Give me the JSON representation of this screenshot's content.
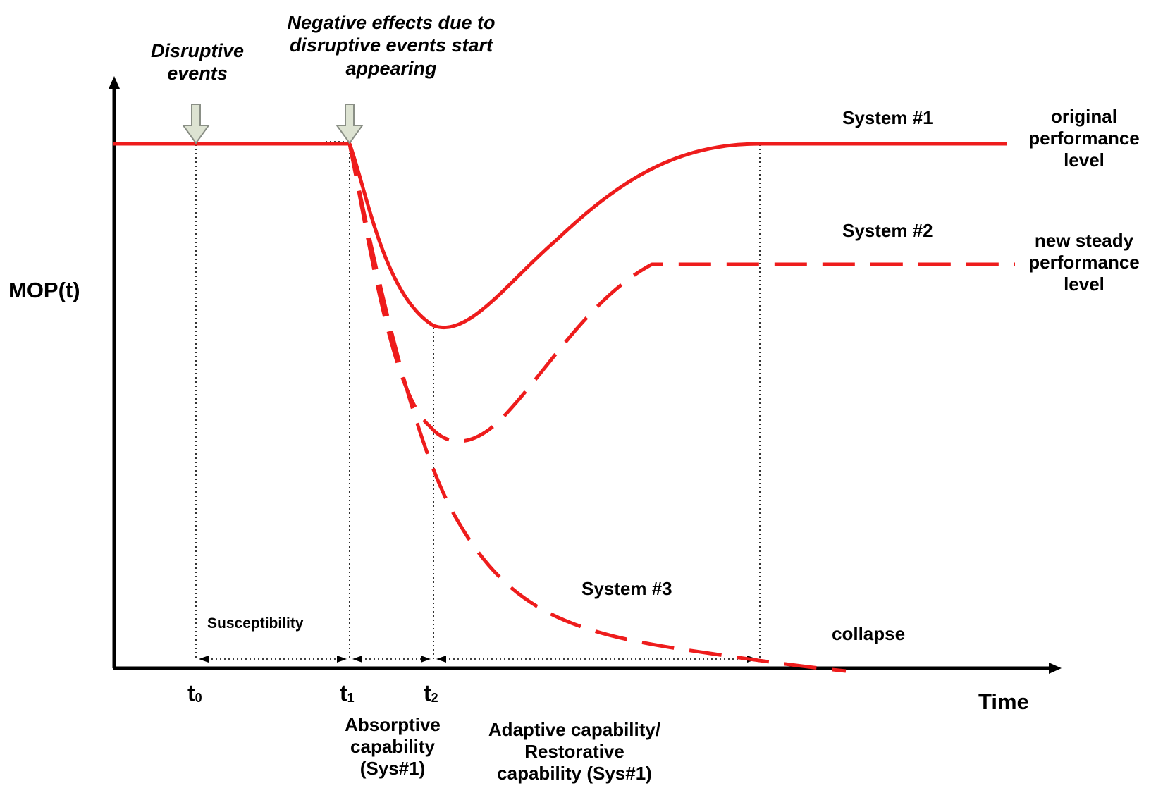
{
  "axes": {
    "y_label": "MOP(t)",
    "x_label": "Time"
  },
  "ticks": {
    "t0": {
      "base": "t",
      "sub": "0"
    },
    "t1": {
      "base": "t",
      "sub": "1"
    },
    "t2": {
      "base": "t",
      "sub": "2"
    }
  },
  "annotations": {
    "disruptive_events": [
      "Disruptive",
      "events"
    ],
    "negative_effects": [
      "Negative effects due to",
      "disruptive events start",
      "appearing"
    ],
    "system1": "System #1",
    "system2": "System #2",
    "system3": "System #3",
    "original_level": [
      "original",
      "performance",
      "level"
    ],
    "new_level": [
      "new steady",
      "performance",
      "level"
    ],
    "collapse": "collapse",
    "susceptibility": "Susceptibility",
    "absorptive": [
      "Absorptive",
      "capability",
      "(Sys#1)"
    ],
    "adaptive": [
      "Adaptive capability/",
      "Restorative",
      "capability (Sys#1)"
    ]
  },
  "colors": {
    "curve": "#ee1c1c",
    "axis": "#000000",
    "arrow_fill": "#dde3d2",
    "arrow_stroke": "#8a8f86"
  }
}
